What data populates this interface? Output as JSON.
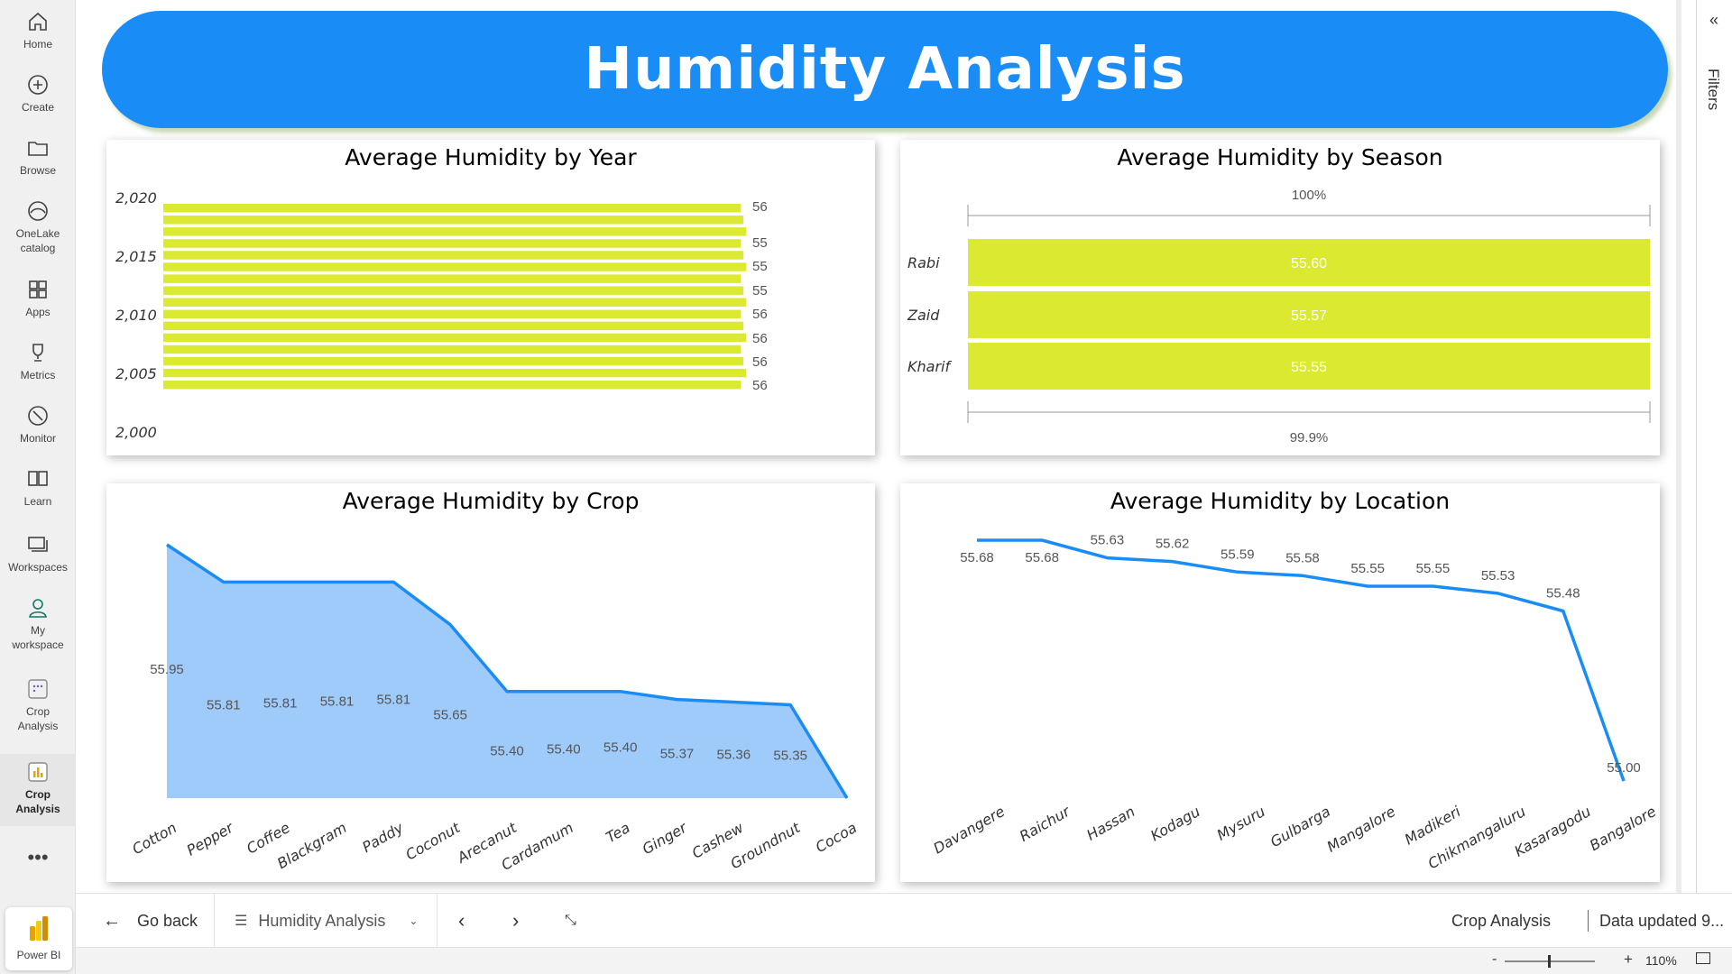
{
  "nav": {
    "items": [
      {
        "label": "Home",
        "icon": "home-icon"
      },
      {
        "label": "Create",
        "icon": "create-icon"
      },
      {
        "label": "Browse",
        "icon": "folder-icon"
      },
      {
        "label": "OneLake\ncatalog",
        "icon": "onelake-icon"
      },
      {
        "label": "Apps",
        "icon": "apps-icon"
      },
      {
        "label": "Metrics",
        "icon": "trophy-icon"
      },
      {
        "label": "Monitor",
        "icon": "monitor-icon"
      },
      {
        "label": "Learn",
        "icon": "book-icon"
      },
      {
        "label": "Workspaces",
        "icon": "workspaces-icon"
      },
      {
        "label": "My\nworkspace",
        "icon": "person-icon"
      },
      {
        "label": "Crop\nAnalysis",
        "icon": "app-grid-icon"
      },
      {
        "label": "Crop\nAnalysis",
        "icon": "report-icon"
      }
    ],
    "more": "•••",
    "product": "Power BI"
  },
  "banner": {
    "title": "Humidity Analysis"
  },
  "filters": {
    "label": "Filters",
    "collapse": "«"
  },
  "footer": {
    "go_back": "Go back",
    "page_name": "Humidity Analysis",
    "app_name": "Crop Analysis",
    "data_updated": "Data updated 9..."
  },
  "status": {
    "zoom": "110%"
  },
  "colors": {
    "accent": "#1a8cf5",
    "bar": "#dbe930",
    "area_fill": "#9ecbfa",
    "line": "#1a8cf5"
  },
  "chart_data": [
    {
      "type": "bar",
      "orientation": "horizontal",
      "title": "Average Humidity by Year",
      "y_ticks": [
        "2,020",
        "2,015",
        "2,010",
        "2,005",
        "2,000"
      ],
      "ylim": [
        2000,
        2020
      ],
      "values_shown": [
        "56",
        "55",
        "55",
        "55",
        "56",
        "56",
        "56",
        "56"
      ],
      "bar_count": 16
    },
    {
      "type": "bar",
      "orientation": "horizontal",
      "title": "Average Humidity by Season",
      "categories": [
        "Rabi",
        "Zaid",
        "Kharif"
      ],
      "values": [
        55.6,
        55.57,
        55.55
      ],
      "axis_top": "100%",
      "axis_bottom": "99.9%"
    },
    {
      "type": "area",
      "title": "Average Humidity by Crop",
      "categories": [
        "Cotton",
        "Pepper",
        "Coffee",
        "Blackgram",
        "Paddy",
        "Coconut",
        "Arecanut",
        "Cardamum",
        "Tea",
        "Ginger",
        "Cashew",
        "Groundnut",
        "Cocoa"
      ],
      "values": [
        55.95,
        55.81,
        55.81,
        55.81,
        55.81,
        55.65,
        55.4,
        55.4,
        55.4,
        55.37,
        55.36,
        55.35,
        55.0
      ],
      "labels": [
        "55.95",
        "55.81",
        "55.81",
        "55.81",
        "55.81",
        "55.65",
        "55.40",
        "55.40",
        "55.40",
        "55.37",
        "55.36",
        "55.35",
        ""
      ]
    },
    {
      "type": "line",
      "title": "Average Humidity by Location",
      "categories": [
        "Davangere",
        "Raichur",
        "Hassan",
        "Kodagu",
        "Mysuru",
        "Gulbarga",
        "Mangalore",
        "Madikeri",
        "Chikmangaluru",
        "Kasaragodu",
        "Bangalore"
      ],
      "values": [
        55.68,
        55.68,
        55.63,
        55.62,
        55.59,
        55.58,
        55.55,
        55.55,
        55.53,
        55.48,
        55.0
      ],
      "labels": [
        "55.68",
        "55.68",
        "55.63",
        "55.62",
        "55.59",
        "55.58",
        "55.55",
        "55.55",
        "55.53",
        "55.48",
        "55.00"
      ]
    }
  ]
}
